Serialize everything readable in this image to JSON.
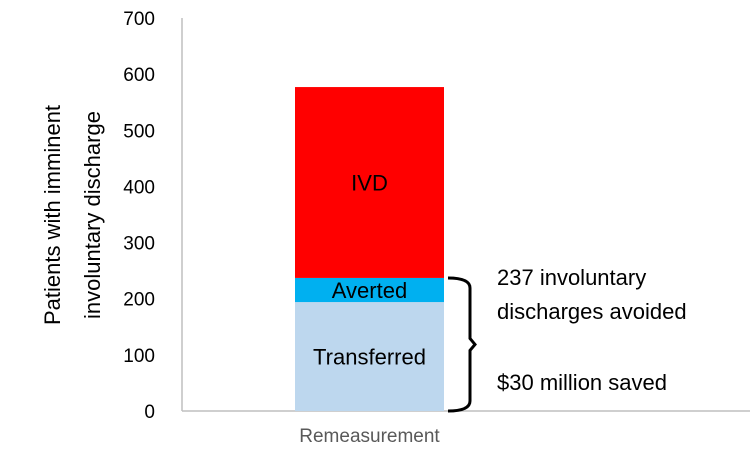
{
  "chart_data": {
    "type": "bar",
    "stacked": true,
    "categories": [
      "Remeasurement"
    ],
    "series": [
      {
        "name": "Transferred",
        "values": [
          194
        ],
        "color": "#BDD7EE"
      },
      {
        "name": "Averted",
        "values": [
          43
        ],
        "color": "#00B0F0"
      },
      {
        "name": "IVD",
        "values": [
          340
        ],
        "color": "#FF0000"
      }
    ],
    "ylabel_lines": [
      "Patients with imminent",
      "involuntary discharge"
    ],
    "xlabel": "",
    "ylim": [
      0,
      700
    ],
    "yticks": [
      0,
      100,
      200,
      300,
      400,
      500,
      600,
      700
    ],
    "grid": false,
    "legend": "none",
    "annotation": {
      "bracket_range": [
        0,
        237
      ],
      "lines": [
        "237 involuntary",
        "discharges avoided",
        "$30 million saved"
      ]
    }
  }
}
